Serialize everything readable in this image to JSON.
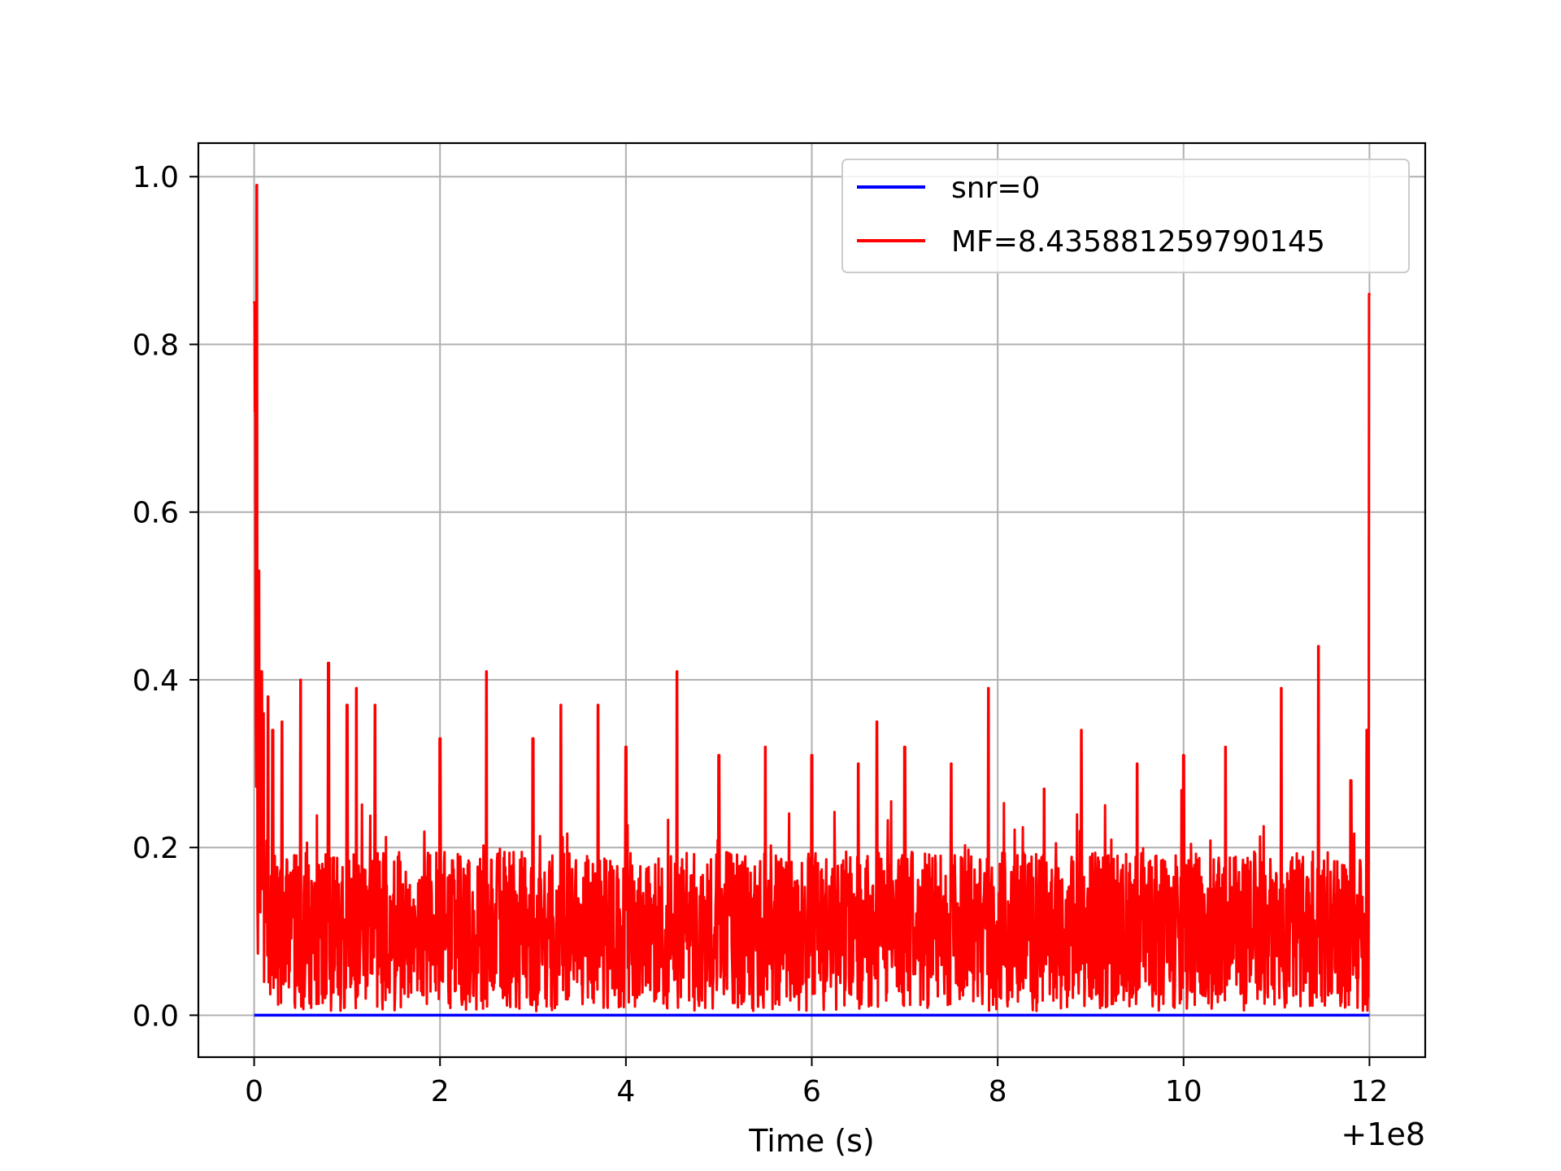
{
  "chart_data": {
    "type": "line",
    "title": "",
    "xlabel": "Time (s)",
    "ylabel": "",
    "x_offset_label": "+1e8",
    "xlim": [
      -0.6,
      12.6
    ],
    "ylim": [
      -0.05,
      1.04
    ],
    "xticks": [
      0,
      2,
      4,
      6,
      8,
      10,
      12
    ],
    "xtick_labels": [
      "0",
      "2",
      "4",
      "6",
      "8",
      "10",
      "12"
    ],
    "yticks": [
      0.0,
      0.2,
      0.4,
      0.6,
      0.8,
      1.0
    ],
    "ytick_labels": [
      "0.0",
      "0.2",
      "0.4",
      "0.6",
      "0.8",
      "1.0"
    ],
    "grid": true,
    "legend_position": "top-right",
    "series": [
      {
        "name": "snr=0",
        "color": "#0000ff",
        "x": [
          0,
          12
        ],
        "y": [
          0,
          0
        ]
      },
      {
        "name": "MF=8.435881259790145",
        "color": "#ff0000",
        "x": [
          0.0,
          0.01,
          0.03,
          0.05,
          0.08,
          0.1,
          0.15,
          0.2,
          0.3,
          0.5,
          0.8,
          1.0,
          1.1,
          1.3,
          2.0,
          2.5,
          3.0,
          3.3,
          3.7,
          4.0,
          4.55,
          5.0,
          5.5,
          6.0,
          6.5,
          6.7,
          7.0,
          7.5,
          7.9,
          8.5,
          8.9,
          9.5,
          10.0,
          10.45,
          11.05,
          11.45,
          11.8,
          11.97,
          12.0
        ],
        "y": [
          0.85,
          0.72,
          0.99,
          0.53,
          0.41,
          0.36,
          0.38,
          0.34,
          0.35,
          0.4,
          0.42,
          0.37,
          0.39,
          0.37,
          0.33,
          0.41,
          0.33,
          0.37,
          0.37,
          0.32,
          0.41,
          0.31,
          0.32,
          0.31,
          0.3,
          0.35,
          0.32,
          0.3,
          0.39,
          0.27,
          0.34,
          0.3,
          0.31,
          0.32,
          0.39,
          0.44,
          0.28,
          0.34,
          0.86
        ]
      }
    ]
  }
}
